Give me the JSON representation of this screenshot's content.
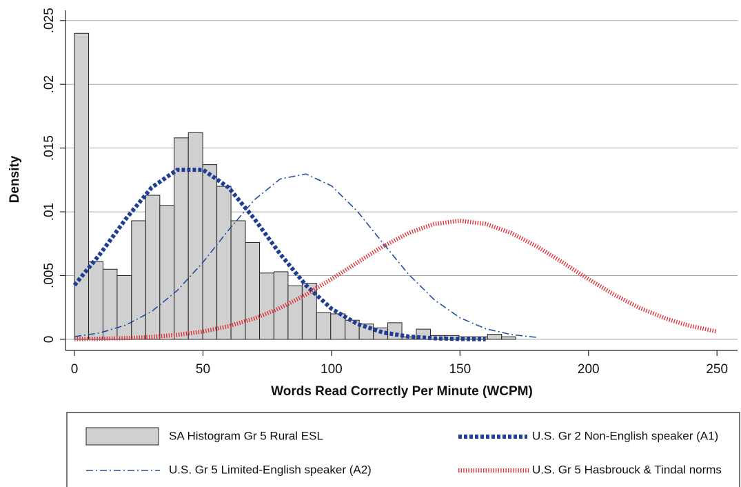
{
  "chart_data": {
    "type": "histogram",
    "xlabel": "Words Read Correctly Per Minute (WCPM)",
    "ylabel": "Density",
    "name": "SA Histogram Gr 5 Rural ESL",
    "color": "#d0d0d0",
    "bins": [
      0,
      5.5,
      11.1,
      16.6,
      22.2,
      27.7,
      33.2,
      38.8,
      44.3,
      49.9,
      55.4,
      60.9,
      66.5,
      72,
      77.6,
      83.1,
      88.6,
      94.2,
      99.7,
      105.3,
      110.8,
      116.3,
      121.9,
      127.4,
      133,
      138.5,
      144,
      149.6,
      155.1,
      160.7,
      166.2,
      171.7
    ],
    "values": [
      0.024,
      0.0061,
      0.0055,
      0.005,
      0.0093,
      0.0113,
      0.0105,
      0.0158,
      0.0162,
      0.0137,
      0.012,
      0.0093,
      0.0076,
      0.0052,
      0.0053,
      0.0042,
      0.0044,
      0.0021,
      0.002,
      0.0015,
      0.0012,
      0.0009,
      0.0013,
      0.0002,
      0.0008,
      0.0003,
      0.0003,
      0.0002,
      0.0002,
      0.0004,
      0.0002
    ],
    "series": [
      {
        "name": "U.S. Gr 2 Non-English speaker (A1)",
        "color": "#1f3d94",
        "style": "dotted",
        "x": [
          0,
          10,
          20,
          30,
          40,
          50,
          60,
          70,
          80,
          90,
          100,
          110,
          120,
          130,
          140,
          150,
          160
        ],
        "values": [
          0.00425,
          0.0067,
          0.00945,
          0.0119,
          0.0133,
          0.0133,
          0.0119,
          0.00945,
          0.0067,
          0.00425,
          0.0024,
          0.00121,
          0.00054,
          0.00022,
          8e-05,
          3e-05,
          1e-05
        ]
      },
      {
        "name": "U.S. Gr 5 Limited-English speaker (A2)",
        "color": "#244f9e",
        "style": "dashdot",
        "x": [
          0,
          10,
          20,
          30,
          40,
          50,
          60,
          70,
          80,
          90,
          100,
          110,
          120,
          130,
          140,
          150,
          160,
          170,
          180
        ],
        "values": [
          0.00021,
          0.00051,
          0.00112,
          0.00218,
          0.00383,
          0.00604,
          0.00858,
          0.01094,
          0.01257,
          0.01297,
          0.01204,
          0.01006,
          0.00755,
          0.0051,
          0.0031,
          0.00169,
          0.00083,
          0.00037,
          0.00015
        ]
      },
      {
        "name": "U.S. Gr 5 Hasbrouck & Tindal norms",
        "color": "#e0303a",
        "style": "hatched",
        "x": [
          0,
          10,
          20,
          30,
          40,
          50,
          60,
          70,
          80,
          90,
          100,
          110,
          120,
          130,
          140,
          150,
          160,
          170,
          180,
          190,
          200,
          210,
          220,
          230,
          240,
          250
        ],
        "values": [
          2e-05,
          5e-05,
          9e-05,
          0.00019,
          0.00035,
          0.00061,
          0.00103,
          0.00163,
          0.00246,
          0.0035,
          0.00472,
          0.00602,
          0.00728,
          0.00834,
          0.00905,
          0.0093,
          0.00905,
          0.00834,
          0.00728,
          0.00602,
          0.00472,
          0.0035,
          0.00246,
          0.00163,
          0.00103,
          0.00061
        ]
      }
    ],
    "xlim": [
      -3.5,
      258
    ],
    "ylim": [
      -0.00087,
      0.0258
    ],
    "xticks": [
      0,
      50,
      100,
      150,
      200,
      250
    ],
    "yticks": [
      0,
      {
        "value": 0.005,
        "label": ".005"
      },
      {
        "value": 0.01,
        "label": ".01"
      },
      {
        "value": 0.015,
        "label": ".015"
      },
      {
        "value": 0.02,
        "label": ".02"
      },
      {
        "value": 0.025,
        "label": ".025"
      }
    ],
    "grid": true
  }
}
